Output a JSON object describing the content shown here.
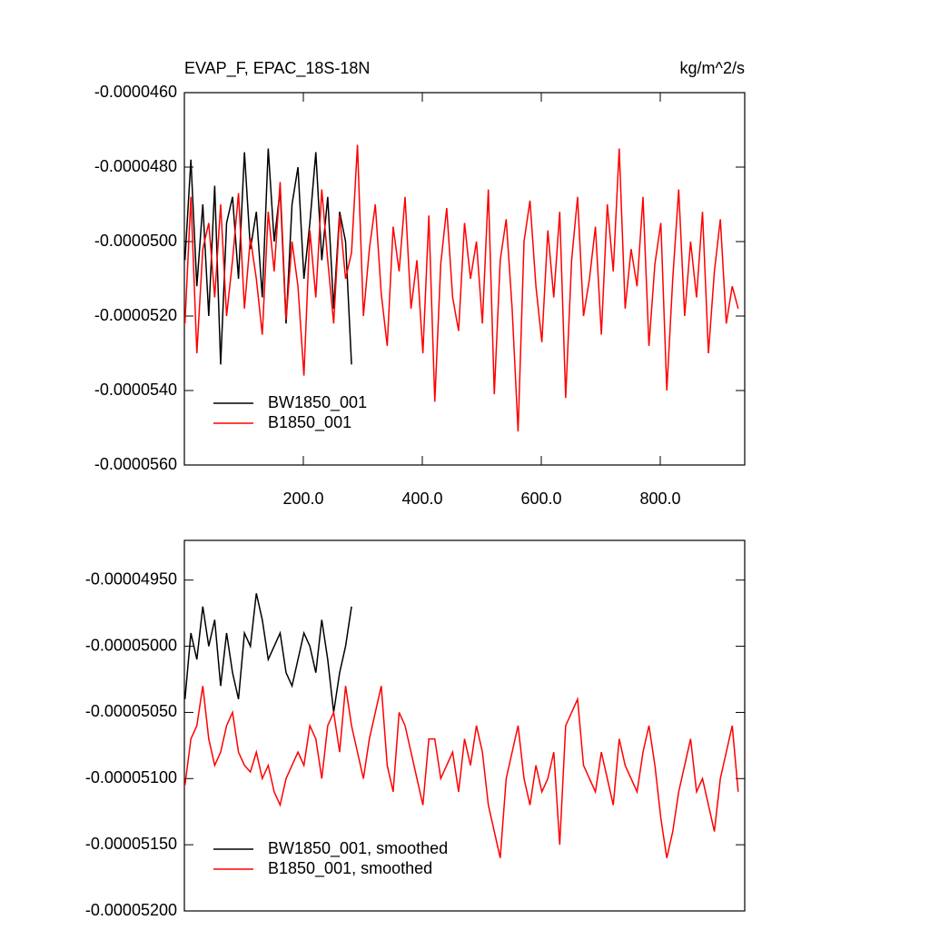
{
  "chart_data": [
    {
      "type": "line",
      "title": "EVAP_F, EPAC_18S-18N",
      "units": "kg/m^2/s",
      "xlim": [
        0,
        942
      ],
      "ylim": [
        -5.6e-05,
        -4.6e-05
      ],
      "xticks": [
        {
          "value": 200,
          "label": "200.0"
        },
        {
          "value": 400,
          "label": "400.0"
        },
        {
          "value": 600,
          "label": "600.0"
        },
        {
          "value": 800,
          "label": "800.0"
        }
      ],
      "yticks": [
        {
          "value": -4.6e-05,
          "label": "-0.0000460"
        },
        {
          "value": -4.8e-05,
          "label": "-0.0000480"
        },
        {
          "value": -5e-05,
          "label": "-0.0000500"
        },
        {
          "value": -5.2e-05,
          "label": "-0.0000520"
        },
        {
          "value": -5.4e-05,
          "label": "-0.0000540"
        },
        {
          "value": -5.6e-05,
          "label": "-0.0000560"
        }
      ],
      "legend": "lower left",
      "series": [
        {
          "name": "BW1850_001",
          "color": "#000000",
          "x": [
            1,
            11,
            21,
            31,
            41,
            51,
            61,
            71,
            81,
            91,
            101,
            111,
            121,
            131,
            141,
            151,
            161,
            171,
            181,
            191,
            201,
            211,
            221,
            231,
            241,
            251,
            261,
            271,
            281
          ],
          "values": [
            -5.05e-05,
            -4.78e-05,
            -5.12e-05,
            -4.9e-05,
            -5.2e-05,
            -4.85e-05,
            -5.33e-05,
            -4.95e-05,
            -4.88e-05,
            -5.1e-05,
            -4.76e-05,
            -5.02e-05,
            -4.92e-05,
            -5.15e-05,
            -4.75e-05,
            -5e-05,
            -4.86e-05,
            -5.22e-05,
            -4.9e-05,
            -4.8e-05,
            -5.1e-05,
            -4.95e-05,
            -4.76e-05,
            -5.05e-05,
            -4.88e-05,
            -5.18e-05,
            -4.92e-05,
            -5e-05,
            -5.33e-05
          ]
        },
        {
          "name": "B1850_001",
          "color": "#ff0000",
          "x": [
            1,
            11,
            21,
            31,
            41,
            51,
            61,
            71,
            81,
            91,
            101,
            111,
            121,
            131,
            141,
            151,
            161,
            171,
            181,
            191,
            201,
            211,
            221,
            231,
            241,
            251,
            261,
            271,
            281,
            291,
            301,
            311,
            321,
            331,
            341,
            351,
            361,
            371,
            381,
            391,
            401,
            411,
            421,
            431,
            441,
            451,
            461,
            471,
            481,
            491,
            501,
            511,
            521,
            531,
            541,
            551,
            561,
            571,
            581,
            591,
            601,
            611,
            621,
            631,
            641,
            651,
            661,
            671,
            681,
            691,
            701,
            711,
            721,
            731,
            741,
            751,
            761,
            771,
            781,
            791,
            801,
            811,
            821,
            831,
            841,
            851,
            861,
            871,
            881,
            891,
            901,
            911,
            921,
            931
          ],
          "values": [
            -5.22e-05,
            -4.88e-05,
            -5.3e-05,
            -5.02e-05,
            -4.95e-05,
            -5.15e-05,
            -4.9e-05,
            -5.2e-05,
            -5.05e-05,
            -4.87e-05,
            -5.18e-05,
            -4.99e-05,
            -5.1e-05,
            -5.25e-05,
            -4.92e-05,
            -5.08e-05,
            -4.84e-05,
            -5.21e-05,
            -5e-05,
            -5.12e-05,
            -5.36e-05,
            -4.97e-05,
            -5.15e-05,
            -4.86e-05,
            -5.05e-05,
            -5.22e-05,
            -4.93e-05,
            -5.1e-05,
            -5.03e-05,
            -4.74e-05,
            -5.2e-05,
            -5.02e-05,
            -4.9e-05,
            -5.14e-05,
            -5.28e-05,
            -4.96e-05,
            -5.08e-05,
            -4.88e-05,
            -5.18e-05,
            -5.05e-05,
            -5.3e-05,
            -4.93e-05,
            -5.43e-05,
            -5.06e-05,
            -4.91e-05,
            -5.15e-05,
            -5.24e-05,
            -4.95e-05,
            -5.1e-05,
            -5e-05,
            -5.22e-05,
            -4.86e-05,
            -5.41e-05,
            -5.05e-05,
            -4.94e-05,
            -5.18e-05,
            -5.51e-05,
            -5e-05,
            -4.89e-05,
            -5.12e-05,
            -5.27e-05,
            -4.97e-05,
            -5.15e-05,
            -4.92e-05,
            -5.42e-05,
            -5.05e-05,
            -4.88e-05,
            -5.2e-05,
            -5.1e-05,
            -4.96e-05,
            -5.25e-05,
            -4.9e-05,
            -5.08e-05,
            -4.75e-05,
            -5.18e-05,
            -5.02e-05,
            -5.12e-05,
            -4.88e-05,
            -5.28e-05,
            -5.06e-05,
            -4.95e-05,
            -5.4e-05,
            -5.1e-05,
            -4.86e-05,
            -5.2e-05,
            -5e-05,
            -5.15e-05,
            -4.92e-05,
            -5.3e-05,
            -5.08e-05,
            -4.94e-05,
            -5.22e-05,
            -5.12e-05,
            -5.18e-05
          ]
        }
      ]
    },
    {
      "type": "line",
      "xlim": [
        0,
        942
      ],
      "ylim": [
        -5.2e-05,
        -4.92e-05
      ],
      "yticks": [
        {
          "value": -4.95e-05,
          "label": "-0.00004950"
        },
        {
          "value": -5e-05,
          "label": "-0.00005000"
        },
        {
          "value": -5.05e-05,
          "label": "-0.00005050"
        },
        {
          "value": -5.1e-05,
          "label": "-0.00005100"
        },
        {
          "value": -5.15e-05,
          "label": "-0.00005150"
        },
        {
          "value": -5.2e-05,
          "label": "-0.00005200"
        }
      ],
      "legend": "lower left",
      "series": [
        {
          "name": "BW1850_001, smoothed",
          "color": "#000000",
          "x": [
            1,
            11,
            21,
            31,
            41,
            51,
            61,
            71,
            81,
            91,
            101,
            111,
            121,
            131,
            141,
            151,
            161,
            171,
            181,
            191,
            201,
            211,
            221,
            231,
            241,
            251,
            261,
            271,
            281
          ],
          "values": [
            -5.04e-05,
            -4.99e-05,
            -5.01e-05,
            -4.97e-05,
            -5e-05,
            -4.98e-05,
            -5.03e-05,
            -4.99e-05,
            -5.02e-05,
            -5.04e-05,
            -4.99e-05,
            -5e-05,
            -4.96e-05,
            -4.98e-05,
            -5.01e-05,
            -5e-05,
            -4.99e-05,
            -5.02e-05,
            -5.03e-05,
            -5.01e-05,
            -4.99e-05,
            -5e-05,
            -5.02e-05,
            -4.98e-05,
            -5.01e-05,
            -5.05e-05,
            -5.02e-05,
            -5e-05,
            -4.97e-05
          ]
        },
        {
          "name": "B1850_001, smoothed",
          "color": "#ff0000",
          "x": [
            1,
            11,
            21,
            31,
            41,
            51,
            61,
            71,
            81,
            91,
            101,
            111,
            121,
            131,
            141,
            151,
            161,
            171,
            181,
            191,
            201,
            211,
            221,
            231,
            241,
            251,
            261,
            271,
            281,
            291,
            301,
            311,
            321,
            331,
            341,
            351,
            361,
            371,
            381,
            391,
            401,
            411,
            421,
            431,
            441,
            451,
            461,
            471,
            481,
            491,
            501,
            511,
            521,
            531,
            541,
            551,
            561,
            571,
            581,
            591,
            601,
            611,
            621,
            631,
            641,
            651,
            661,
            671,
            681,
            691,
            701,
            711,
            721,
            731,
            741,
            751,
            761,
            771,
            781,
            791,
            801,
            811,
            821,
            831,
            841,
            851,
            861,
            871,
            881,
            891,
            901,
            911,
            921,
            931
          ],
          "values": [
            -5.105e-05,
            -5.07e-05,
            -5.06e-05,
            -5.03e-05,
            -5.07e-05,
            -5.09e-05,
            -5.08e-05,
            -5.06e-05,
            -5.05e-05,
            -5.08e-05,
            -5.09e-05,
            -5.095e-05,
            -5.08e-05,
            -5.1e-05,
            -5.09e-05,
            -5.11e-05,
            -5.12e-05,
            -5.1e-05,
            -5.09e-05,
            -5.08e-05,
            -5.09e-05,
            -5.06e-05,
            -5.07e-05,
            -5.1e-05,
            -5.06e-05,
            -5.05e-05,
            -5.08e-05,
            -5.03e-05,
            -5.06e-05,
            -5.08e-05,
            -5.1e-05,
            -5.07e-05,
            -5.05e-05,
            -5.03e-05,
            -5.09e-05,
            -5.11e-05,
            -5.05e-05,
            -5.06e-05,
            -5.08e-05,
            -5.1e-05,
            -5.12e-05,
            -5.07e-05,
            -5.07e-05,
            -5.1e-05,
            -5.09e-05,
            -5.08e-05,
            -5.11e-05,
            -5.07e-05,
            -5.09e-05,
            -5.06e-05,
            -5.08e-05,
            -5.12e-05,
            -5.14e-05,
            -5.16e-05,
            -5.1e-05,
            -5.08e-05,
            -5.06e-05,
            -5.1e-05,
            -5.12e-05,
            -5.09e-05,
            -5.11e-05,
            -5.1e-05,
            -5.08e-05,
            -5.15e-05,
            -5.06e-05,
            -5.05e-05,
            -5.04e-05,
            -5.09e-05,
            -5.1e-05,
            -5.11e-05,
            -5.08e-05,
            -5.1e-05,
            -5.12e-05,
            -5.07e-05,
            -5.09e-05,
            -5.1e-05,
            -5.11e-05,
            -5.08e-05,
            -5.06e-05,
            -5.09e-05,
            -5.13e-05,
            -5.16e-05,
            -5.14e-05,
            -5.11e-05,
            -5.09e-05,
            -5.07e-05,
            -5.11e-05,
            -5.1e-05,
            -5.12e-05,
            -5.14e-05,
            -5.1e-05,
            -5.08e-05,
            -5.06e-05,
            -5.11e-05
          ]
        }
      ]
    }
  ]
}
